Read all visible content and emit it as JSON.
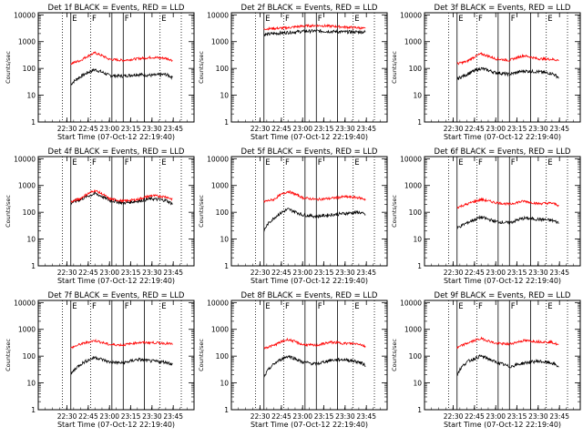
{
  "chart_data": {
    "type": "line",
    "ylabel": "Counts/sec",
    "xlabel": "Start Time (07-Oct-12 22:19:40)",
    "yscale": "log",
    "ylim": [
      1,
      12000
    ],
    "xlim_minutes": [
      -10,
      100
    ],
    "x_tick_labels": [
      "22:30",
      "22:45",
      "23:00",
      "23:15",
      "23:30",
      "23:45"
    ],
    "x_tick_minutes": [
      10.33,
      25.33,
      40.33,
      55.33,
      70.33,
      85.33
    ],
    "y_tick_labels": [
      "1",
      "10",
      "100",
      "1000",
      "10000"
    ],
    "y_tick_values": [
      1,
      10,
      100,
      1000,
      10000
    ],
    "event_markers": [
      {
        "minute": 7,
        "style": "dotted"
      },
      {
        "minute": 13,
        "style": "solid",
        "label": "E"
      },
      {
        "minute": 27,
        "style": "dotted",
        "label": "F"
      },
      {
        "minute": 42,
        "style": "solid"
      },
      {
        "minute": 50,
        "style": "solid",
        "label": "F"
      },
      {
        "minute": 65,
        "style": "solid"
      },
      {
        "minute": 76,
        "style": "dotted",
        "label": "E"
      },
      {
        "minute": 91,
        "style": "dotted"
      }
    ],
    "series_colors": {
      "black": "#000000",
      "red": "#ff0000"
    },
    "x_minutes": [
      13,
      20,
      30,
      40,
      50,
      60,
      70,
      80,
      85
    ],
    "panels": [
      {
        "title": "Det 1f BLACK = Events, RED = LLD",
        "series": [
          {
            "color": "black",
            "values": [
              25,
              50,
              90,
              55,
              52,
              60,
              55,
              60,
              45
            ]
          },
          {
            "color": "red",
            "values": [
              150,
              200,
              380,
              220,
              200,
              230,
              260,
              240,
              200
            ]
          }
        ]
      },
      {
        "title": "Det 2f BLACK = Events, RED = LLD",
        "series": [
          {
            "color": "black",
            "values": [
              1800,
              2000,
              2200,
              2400,
              2500,
              2400,
              2300,
              2300,
              2300
            ]
          },
          {
            "color": "red",
            "values": [
              3000,
              3100,
              3300,
              3800,
              4000,
              3800,
              3500,
              3300,
              3000
            ]
          }
        ]
      },
      {
        "title": "Det 3f BLACK = Events, RED = LLD",
        "series": [
          {
            "color": "black",
            "values": [
              40,
              60,
              100,
              70,
              60,
              80,
              75,
              65,
              45
            ]
          },
          {
            "color": "red",
            "values": [
              150,
              180,
              350,
              230,
              200,
              300,
              230,
              220,
              200
            ]
          }
        ]
      },
      {
        "title": "Det 4f BLACK = Events, RED = LLD",
        "series": [
          {
            "color": "black",
            "values": [
              220,
              300,
              500,
              280,
              220,
              260,
              320,
              280,
              200
            ]
          },
          {
            "color": "red",
            "values": [
              240,
              330,
              650,
              320,
              260,
              300,
              420,
              380,
              300
            ]
          }
        ]
      },
      {
        "title": "Det 5f BLACK = Events, RED = LLD",
        "series": [
          {
            "color": "black",
            "values": [
              20,
              60,
              130,
              80,
              70,
              80,
              90,
              100,
              80
            ]
          },
          {
            "color": "red",
            "values": [
              250,
              300,
              600,
              350,
              300,
              330,
              380,
              350,
              300
            ]
          }
        ]
      },
      {
        "title": "Det 6f BLACK = Events, RED = LLD",
        "series": [
          {
            "color": "black",
            "values": [
              25,
              40,
              65,
              45,
              40,
              60,
              55,
              50,
              40
            ]
          },
          {
            "color": "red",
            "values": [
              150,
              200,
              300,
              230,
              200,
              260,
              210,
              220,
              180
            ]
          }
        ]
      },
      {
        "title": "Det 7f BLACK = Events, RED = LLD",
        "series": [
          {
            "color": "black",
            "values": [
              20,
              50,
              90,
              60,
              55,
              75,
              65,
              60,
              50
            ]
          },
          {
            "color": "red",
            "values": [
              200,
              280,
              380,
              270,
              260,
              320,
              320,
              300,
              280
            ]
          }
        ]
      },
      {
        "title": "Det 8f BLACK = Events, RED = LLD",
        "series": [
          {
            "color": "black",
            "values": [
              15,
              50,
              100,
              60,
              50,
              70,
              75,
              60,
              45
            ]
          },
          {
            "color": "red",
            "values": [
              200,
              250,
              420,
              270,
              250,
              330,
              300,
              290,
              220
            ]
          }
        ]
      },
      {
        "title": "Det 9f BLACK = Events, RED = LLD",
        "series": [
          {
            "color": "black",
            "values": [
              20,
              60,
              100,
              60,
              40,
              55,
              65,
              55,
              40
            ]
          },
          {
            "color": "red",
            "values": [
              200,
              300,
              450,
              300,
              280,
              380,
              350,
              330,
              250
            ]
          }
        ]
      }
    ]
  }
}
